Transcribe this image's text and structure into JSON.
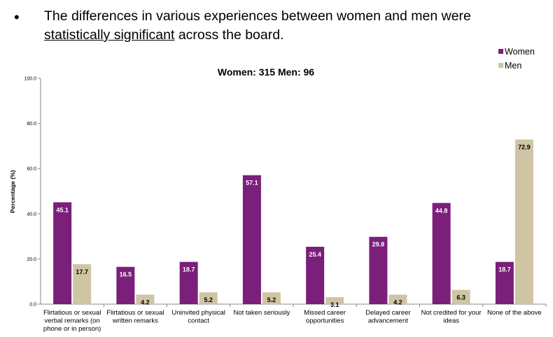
{
  "slide": {
    "bullet": "•",
    "headline_part1": "The differences in various experiences between women and men were",
    "headline_underlined": "statistically significant",
    "headline_part2": " across the board."
  },
  "colors": {
    "women": "#7a1f7a",
    "men": "#cfc4a3",
    "axis": "#888888"
  },
  "chart_data": {
    "type": "bar",
    "title": "",
    "subtitle": "Women: 315   Men: 96",
    "xlabel": "",
    "ylabel": "Percentage (%)",
    "ylim": [
      0,
      100
    ],
    "yticks": [
      "0.0",
      "20.0",
      "40.0",
      "60.0",
      "80.0",
      "100.0"
    ],
    "ytick_values": [
      0,
      20,
      40,
      60,
      80,
      100
    ],
    "legend_position": "top-right",
    "categories": [
      [
        "Flirtatious or sexual",
        "verbal remarks (on",
        "phone or in person)"
      ],
      [
        "Flirtatious or sexual",
        "written remarks"
      ],
      [
        "Uninvited physical",
        "contact"
      ],
      [
        "Not taken seriously"
      ],
      [
        "Missed career",
        "opportunities"
      ],
      [
        "Delayed career",
        "advancement"
      ],
      [
        "Not credited for your",
        "ideas"
      ],
      [
        "None of the above"
      ]
    ],
    "series": [
      {
        "name": "Women",
        "values": [
          45.1,
          16.5,
          18.7,
          57.1,
          25.4,
          29.8,
          44.8,
          18.7
        ],
        "labels": [
          "45.1",
          "16.5",
          "18.7",
          "57.1",
          "25.4",
          "29.8",
          "44.8",
          "18.7"
        ]
      },
      {
        "name": "Men",
        "values": [
          17.7,
          4.2,
          5.2,
          5.2,
          3.1,
          4.2,
          6.3,
          72.9
        ],
        "labels": [
          "17.7",
          "4.2",
          "5.2",
          "5.2",
          "3.1",
          "4.2",
          "6.3",
          "72.9"
        ]
      }
    ]
  }
}
